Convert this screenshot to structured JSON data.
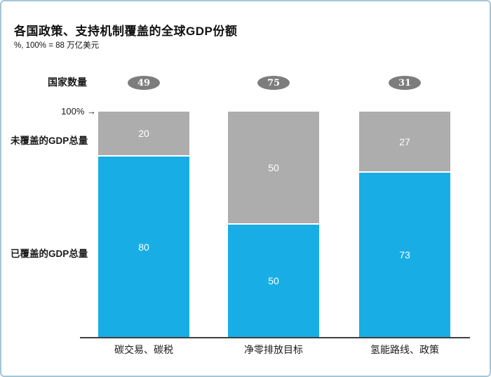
{
  "header": {
    "title": "各国政策、支持机制覆盖的全球GDP份额",
    "subtitle": "%, 100% = 88 万亿美元"
  },
  "labels": {
    "countries_row": "国家数量",
    "hundred_percent": "100%",
    "arrow": "→",
    "uncovered_gdp": "未覆盖的GDP总量",
    "covered_gdp": "已覆盖的GDP总量"
  },
  "chart_data": {
    "type": "bar",
    "stacked": true,
    "title": "各国政策、支持机制覆盖的全球GDP份额",
    "subtitle": "%, 100% = 88 万亿美元",
    "categories": [
      "碳交易、碳税",
      "净零排放目标",
      "氢能路线、政策"
    ],
    "country_counts": [
      49,
      75,
      31
    ],
    "series": [
      {
        "name": "未覆盖的GDP总量",
        "color": "#ADADAD",
        "values": [
          20,
          50,
          27
        ]
      },
      {
        "name": "已覆盖的GDP总量",
        "color": "#18AEE5",
        "values": [
          80,
          50,
          73
        ]
      }
    ],
    "ylim": [
      0,
      100
    ],
    "grid": false,
    "legend_position": "left-row-labels"
  },
  "colors": {
    "covered": "#18AEE5",
    "uncovered": "#ADADAD",
    "badge": "#7D7D7D",
    "axis": "#3F3F3F",
    "frame_border": "#A3C6D8",
    "value_text": "#FFFFFF"
  }
}
